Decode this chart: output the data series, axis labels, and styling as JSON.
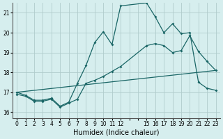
{
  "xlabel": "Humidex (Indice chaleur)",
  "ylabel": "",
  "bg_color": "#d6eeee",
  "grid_color": "#b0cccc",
  "line_color": "#1a6666",
  "xlim": [
    -0.5,
    23.5
  ],
  "ylim": [
    15.7,
    21.5
  ],
  "yticks": [
    16,
    17,
    18,
    19,
    20,
    21
  ],
  "xticks": [
    0,
    1,
    2,
    3,
    4,
    5,
    6,
    7,
    8,
    9,
    10,
    11,
    12,
    13,
    14,
    15,
    16,
    17,
    18,
    19,
    20,
    21,
    22,
    23
  ],
  "xtick_labels": [
    "0",
    "1",
    "2",
    "3",
    "4",
    "5",
    "6",
    "7",
    "8",
    "9",
    "10",
    "11",
    "12",
    "",
    "",
    "15",
    "16",
    "17",
    "18",
    "19",
    "20",
    "21",
    "22",
    "23"
  ],
  "line1_x": [
    0,
    1,
    2,
    3,
    4,
    5,
    6,
    7,
    8,
    9,
    10,
    11,
    12,
    15,
    16,
    17,
    18,
    19,
    20,
    21,
    22,
    23
  ],
  "line1_y": [
    16.9,
    16.8,
    16.55,
    16.55,
    16.65,
    16.25,
    16.45,
    16.65,
    17.45,
    17.6,
    17.8,
    18.05,
    18.3,
    19.35,
    19.45,
    19.35,
    19.0,
    19.1,
    19.85,
    19.05,
    18.55,
    18.1
  ],
  "line2_x": [
    0,
    1,
    2,
    3,
    4,
    5,
    6,
    7,
    8,
    9,
    10,
    11,
    12,
    15,
    16,
    17,
    18,
    19,
    20,
    21,
    22,
    23
  ],
  "line2_y": [
    17.0,
    16.85,
    16.6,
    16.6,
    16.7,
    16.3,
    16.5,
    17.45,
    18.35,
    19.5,
    20.05,
    19.4,
    21.35,
    21.5,
    20.8,
    20.0,
    20.45,
    19.95,
    20.0,
    17.5,
    17.2,
    17.1
  ],
  "line3_x": [
    0,
    23
  ],
  "line3_y": [
    17.0,
    18.1
  ]
}
